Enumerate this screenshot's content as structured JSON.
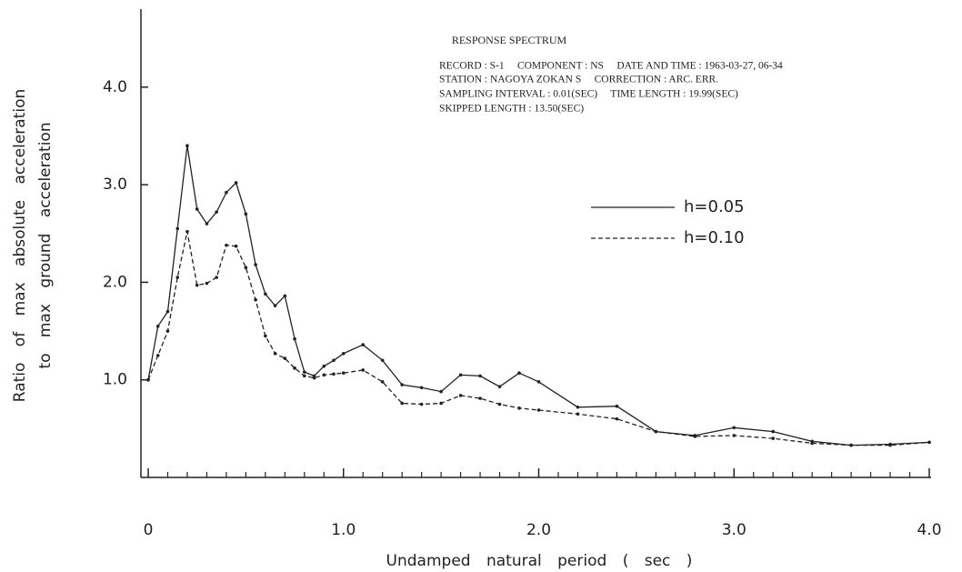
{
  "chart_data": {
    "type": "line",
    "title": "RESPONSE SPECTRUM",
    "annotations": [
      "RECORD : S-1     COMPONENT : NS     DATE AND TIME : 1963-03-27, 06-34",
      "STATION : NAGOYA ZOKAN S     CORRECTION : ARC. ERR.",
      "SAMPLING INTERVAL : 0.01(SEC)     TIME LENGTH : 19.99(SEC)",
      "SKIPPED LENGTH : 13.50(SEC)"
    ],
    "ylabel": [
      "Ratio of max absolute acceleration",
      "to max ground acceleration"
    ],
    "xlabel": "Undamped natural period ( sec )",
    "x": [
      0,
      0.05,
      0.1,
      0.15,
      0.2,
      0.25,
      0.3,
      0.35,
      0.4,
      0.45,
      0.5,
      0.55,
      0.6,
      0.65,
      0.7,
      0.75,
      0.8,
      0.85,
      0.9,
      0.95,
      1.0,
      1.1,
      1.2,
      1.3,
      1.4,
      1.5,
      1.6,
      1.7,
      1.8,
      1.9,
      2.0,
      2.2,
      2.4,
      2.6,
      2.8,
      3.0,
      3.2,
      3.4,
      3.6,
      3.8,
      4.0
    ],
    "series": [
      {
        "name": "h=0.05",
        "color": "#222222",
        "line_style": "solid",
        "values": [
          1.0,
          1.55,
          1.7,
          2.55,
          3.4,
          2.75,
          2.6,
          2.72,
          2.92,
          3.02,
          2.7,
          2.18,
          1.88,
          1.76,
          1.86,
          1.42,
          1.08,
          1.04,
          1.14,
          1.2,
          1.27,
          1.36,
          1.2,
          0.95,
          0.92,
          0.88,
          1.05,
          1.04,
          0.93,
          1.07,
          0.98,
          0.72,
          0.73,
          0.47,
          0.43,
          0.51,
          0.47,
          0.37,
          0.33,
          0.34,
          0.36
        ]
      },
      {
        "name": "h=0.10",
        "color": "#222222",
        "line_style": "dashed",
        "values": [
          1.0,
          1.25,
          1.5,
          2.05,
          2.52,
          1.97,
          1.99,
          2.05,
          2.38,
          2.37,
          2.15,
          1.82,
          1.45,
          1.27,
          1.22,
          1.12,
          1.04,
          1.02,
          1.05,
          1.06,
          1.07,
          1.1,
          0.98,
          0.76,
          0.75,
          0.76,
          0.84,
          0.81,
          0.75,
          0.71,
          0.69,
          0.65,
          0.6,
          0.47,
          0.42,
          0.43,
          0.4,
          0.35,
          0.33,
          0.33,
          0.36
        ]
      }
    ],
    "xlim": [
      0,
      4.0
    ],
    "ylim": [
      0,
      4.8
    ],
    "xticks": [
      0,
      {
        "value": 1,
        "label": "1.0"
      },
      {
        "value": 2,
        "label": "2.0"
      },
      {
        "value": 3,
        "label": "3.0"
      },
      {
        "value": 4,
        "label": "4.0"
      }
    ],
    "xminorticks": [
      0.1,
      0.2,
      0.3,
      0.4,
      0.5,
      0.6,
      0.7,
      0.8,
      0.9,
      1.1,
      1.2,
      1.3,
      1.4,
      1.5,
      1.6,
      1.7,
      1.8,
      1.9,
      2.1,
      2.2,
      2.3,
      2.4,
      2.5,
      2.6,
      2.7,
      2.8,
      2.9,
      3.1,
      3.2,
      3.3,
      3.4,
      3.5,
      3.6,
      3.7,
      3.8,
      3.9
    ],
    "yticks": [
      {
        "value": 1,
        "label": "1.0"
      },
      {
        "value": 2,
        "label": "2.0"
      },
      {
        "value": 3,
        "label": "3.0"
      },
      {
        "value": 4,
        "label": "4.0"
      }
    ],
    "grid": false
  }
}
